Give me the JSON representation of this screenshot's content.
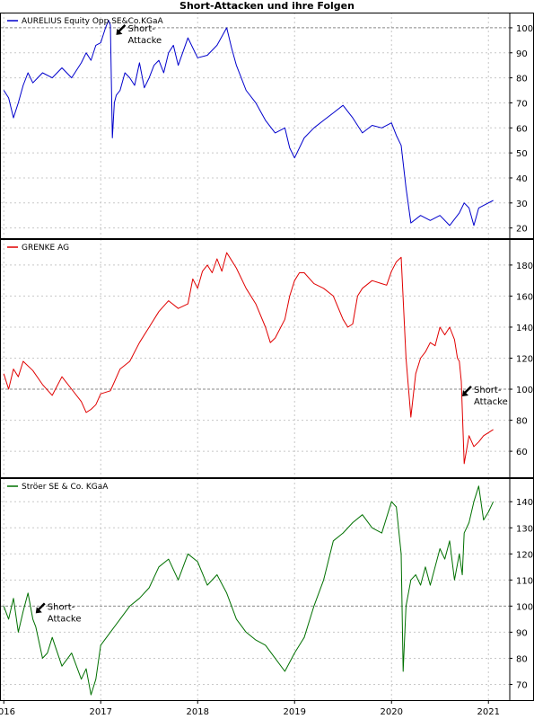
{
  "title": "Short-Attacken und ihre Folgen",
  "colors": {
    "aurelius": "#0000cc",
    "grenke": "#e00000",
    "stroeer": "#007000",
    "grid": "#c8c8c8",
    "reference": "#888888"
  },
  "chart_data": [
    {
      "type": "line",
      "legend": "AURELIUS Equity Opp.SE&Co.KGaA",
      "color": "#0000cc",
      "ylim": [
        17,
        105
      ],
      "yticks": [
        20,
        30,
        40,
        50,
        60,
        70,
        80,
        90,
        100
      ],
      "reference_line": 100,
      "annotation": {
        "lines": [
          "Short-",
          "Attacke"
        ],
        "x": 2017.15,
        "y": 100
      },
      "series": [
        {
          "x": [
            2016.0,
            2016.05,
            2016.1,
            2016.15,
            2016.2,
            2016.25,
            2016.3,
            2016.35,
            2016.4,
            2016.5,
            2016.6,
            2016.7,
            2016.8,
            2016.85,
            2016.9,
            2016.95,
            2017.0,
            2017.05,
            2017.08,
            2017.1,
            2017.12,
            2017.14,
            2017.16,
            2017.2,
            2017.25,
            2017.3,
            2017.35,
            2017.4,
            2017.45,
            2017.5,
            2017.55,
            2017.6,
            2017.65,
            2017.7,
            2017.75,
            2017.8,
            2017.9,
            2018.0,
            2018.1,
            2018.2,
            2018.3,
            2018.35,
            2018.4,
            2018.45,
            2018.5,
            2018.6,
            2018.7,
            2018.8,
            2018.9,
            2018.95,
            2019.0,
            2019.1,
            2019.2,
            2019.3,
            2019.4,
            2019.5,
            2019.6,
            2019.7,
            2019.8,
            2019.9,
            2020.0,
            2020.05,
            2020.1,
            2020.15,
            2020.2,
            2020.3,
            2020.4,
            2020.5,
            2020.6,
            2020.7,
            2020.75,
            2020.8,
            2020.85,
            2020.9,
            2020.95,
            2021.0,
            2021.05
          ],
          "y": [
            75,
            72,
            64,
            70,
            77,
            82,
            78,
            80,
            82,
            80,
            84,
            80,
            86,
            90,
            87,
            93,
            94,
            100,
            103,
            101,
            56,
            70,
            73,
            75,
            82,
            80,
            77,
            86,
            76,
            80,
            85,
            87,
            82,
            90,
            93,
            85,
            96,
            88,
            89,
            93,
            100,
            92,
            85,
            80,
            75,
            70,
            63,
            58,
            60,
            52,
            48,
            56,
            60,
            63,
            66,
            69,
            64,
            58,
            61,
            60,
            62,
            57,
            53,
            36,
            22,
            25,
            23,
            25,
            21,
            26,
            30,
            28,
            21,
            28,
            29,
            30,
            31
          ]
        }
      ]
    },
    {
      "type": "line",
      "legend": "GRENKE AG",
      "color": "#e00000",
      "ylim": [
        45,
        195
      ],
      "yticks": [
        60,
        80,
        100,
        120,
        140,
        160,
        180
      ],
      "reference_line": 100,
      "annotation": {
        "lines": [
          "Short-",
          "Attacke"
        ],
        "x": 2020.72,
        "y": 100
      },
      "series": [
        {
          "x": [
            2016.0,
            2016.05,
            2016.1,
            2016.15,
            2016.2,
            2016.3,
            2016.4,
            2016.5,
            2016.6,
            2016.7,
            2016.8,
            2016.85,
            2016.9,
            2016.95,
            2017.0,
            2017.1,
            2017.2,
            2017.3,
            2017.4,
            2017.5,
            2017.6,
            2017.7,
            2017.8,
            2017.9,
            2017.95,
            2018.0,
            2018.05,
            2018.1,
            2018.15,
            2018.2,
            2018.25,
            2018.3,
            2018.35,
            2018.4,
            2018.5,
            2018.6,
            2018.7,
            2018.75,
            2018.8,
            2018.9,
            2018.95,
            2019.0,
            2019.05,
            2019.1,
            2019.2,
            2019.3,
            2019.4,
            2019.5,
            2019.55,
            2019.6,
            2019.65,
            2019.7,
            2019.8,
            2019.9,
            2019.95,
            2020.0,
            2020.05,
            2020.1,
            2020.15,
            2020.2,
            2020.25,
            2020.3,
            2020.35,
            2020.4,
            2020.45,
            2020.5,
            2020.55,
            2020.6,
            2020.65,
            2020.68,
            2020.7,
            2020.72,
            2020.75,
            2020.8,
            2020.85,
            2020.9,
            2020.95,
            2021.0,
            2021.05
          ],
          "y": [
            110,
            100,
            113,
            108,
            118,
            112,
            103,
            96,
            108,
            100,
            92,
            85,
            87,
            90,
            97,
            99,
            113,
            118,
            130,
            140,
            150,
            157,
            152,
            155,
            171,
            165,
            176,
            180,
            175,
            184,
            176,
            188,
            183,
            178,
            165,
            155,
            140,
            130,
            133,
            145,
            160,
            170,
            175,
            175,
            168,
            165,
            160,
            145,
            140,
            142,
            160,
            165,
            170,
            168,
            167,
            176,
            182,
            185,
            120,
            82,
            110,
            120,
            124,
            130,
            128,
            140,
            135,
            140,
            132,
            120,
            118,
            105,
            52,
            70,
            63,
            66,
            70,
            72,
            74
          ]
        }
      ]
    },
    {
      "type": "line",
      "legend": "Ströer SE & Co. KGaA",
      "color": "#007000",
      "ylim": [
        65,
        148
      ],
      "yticks": [
        70,
        80,
        90,
        100,
        110,
        120,
        130,
        140
      ],
      "reference_line": 100,
      "annotation": {
        "lines": [
          "Short-",
          "Attacke"
        ],
        "x": 2016.32,
        "y": 100
      },
      "series": [
        {
          "x": [
            2016.0,
            2016.05,
            2016.1,
            2016.15,
            2016.2,
            2016.25,
            2016.3,
            2016.33,
            2016.4,
            2016.45,
            2016.5,
            2016.6,
            2016.7,
            2016.8,
            2016.85,
            2016.9,
            2016.95,
            2017.0,
            2017.1,
            2017.2,
            2017.3,
            2017.4,
            2017.5,
            2017.6,
            2017.7,
            2017.8,
            2017.9,
            2018.0,
            2018.1,
            2018.2,
            2018.3,
            2018.4,
            2018.5,
            2018.6,
            2018.7,
            2018.8,
            2018.9,
            2019.0,
            2019.05,
            2019.1,
            2019.2,
            2019.3,
            2019.4,
            2019.5,
            2019.6,
            2019.7,
            2019.8,
            2019.9,
            2020.0,
            2020.05,
            2020.1,
            2020.12,
            2020.15,
            2020.2,
            2020.25,
            2020.3,
            2020.35,
            2020.4,
            2020.5,
            2020.55,
            2020.6,
            2020.65,
            2020.7,
            2020.73,
            2020.75,
            2020.8,
            2020.85,
            2020.9,
            2020.95,
            2021.0,
            2021.05
          ],
          "y": [
            100,
            95,
            103,
            90,
            98,
            105,
            95,
            92,
            80,
            82,
            88,
            77,
            82,
            72,
            76,
            66,
            72,
            85,
            90,
            95,
            100,
            103,
            107,
            115,
            118,
            110,
            120,
            117,
            108,
            112,
            105,
            95,
            90,
            87,
            85,
            80,
            75,
            82,
            85,
            88,
            100,
            110,
            125,
            128,
            132,
            135,
            130,
            128,
            140,
            138,
            120,
            75,
            100,
            110,
            112,
            108,
            115,
            108,
            122,
            118,
            125,
            110,
            120,
            112,
            128,
            132,
            140,
            146,
            133,
            136,
            140
          ]
        }
      ]
    }
  ],
  "x_axis": {
    "xlim": [
      2015.97,
      2021.22
    ],
    "ticks": [
      2016,
      2017,
      2018,
      2019,
      2020,
      2021
    ],
    "labels": [
      "2016",
      "2017",
      "2018",
      "2019",
      "2020",
      "2021"
    ]
  }
}
